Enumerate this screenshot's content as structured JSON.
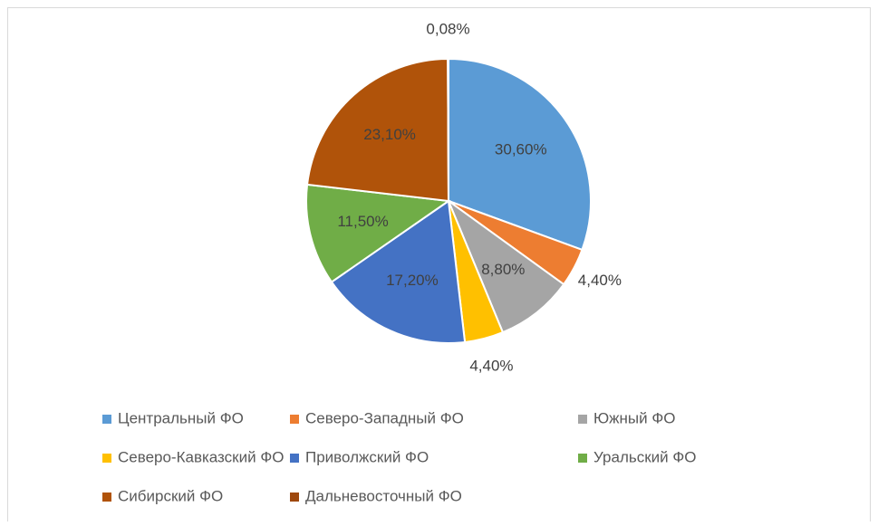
{
  "chart_data": {
    "type": "pie",
    "categories": [
      "Центральный ФО",
      "Северо-Западный ФО",
      "Южный ФО",
      "Северо-Кавказский ФО",
      "Приволжский ФО",
      "Уральский ФО",
      "Сибирский ФО",
      "Дальневосточный ФО"
    ],
    "values": [
      30.6,
      4.4,
      8.8,
      4.4,
      17.2,
      11.5,
      23.1,
      0.08
    ],
    "value_labels": [
      "30,60%",
      "4,40%",
      "8,80%",
      "4,40%",
      "17,20%",
      "11,50%",
      "23,10%",
      "0,08%"
    ],
    "colors": [
      "#5b9bd5",
      "#ed7d31",
      "#a5a5a5",
      "#ffc000",
      "#4472c4",
      "#70ad47",
      "#b0530a",
      "#9e480e"
    ],
    "legend": "bottom"
  }
}
